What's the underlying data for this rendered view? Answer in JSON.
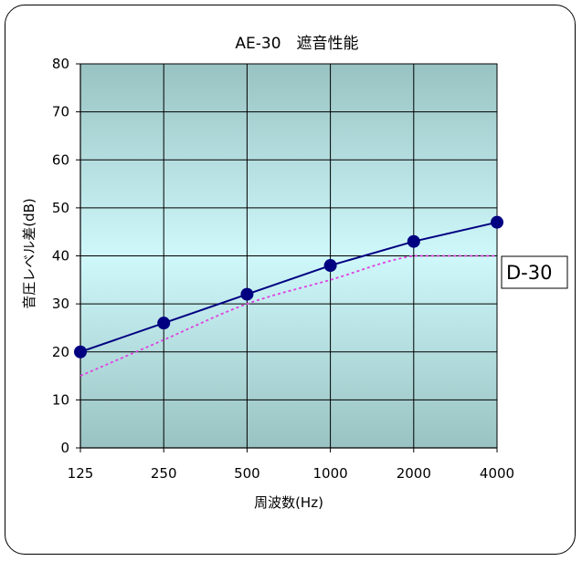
{
  "chart_data": {
    "type": "line",
    "title": "AE-30　遮音性能",
    "xlabel": "周波数(Hz)",
    "ylabel": "音圧レベル差(dB)",
    "categories": [
      "125",
      "250",
      "500",
      "1000",
      "2000",
      "4000"
    ],
    "ylim": [
      0,
      80
    ],
    "yticks": [
      "0",
      "10",
      "20",
      "30",
      "40",
      "50",
      "60",
      "70",
      "80"
    ],
    "grid": true,
    "series": [
      {
        "values": [
          20,
          26,
          32,
          38,
          43,
          47
        ],
        "color": "#000080",
        "style": "solid",
        "markers": true
      },
      {
        "name": "D-30",
        "values": [
          15,
          22.5,
          30,
          35,
          40,
          40
        ],
        "color": "#e040e0",
        "style": "dotted",
        "markers": false
      }
    ],
    "background_colors": [
      "#99c2c2",
      "#cff8fb",
      "#99c2c2"
    ]
  }
}
